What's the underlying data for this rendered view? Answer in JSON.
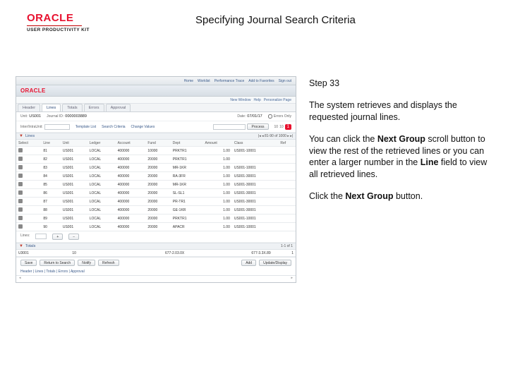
{
  "logo": {
    "brand": "ORACLE",
    "sub": "USER PRODUCTIVITY KIT"
  },
  "title": "Specifying Journal Search Criteria",
  "instructions": {
    "step": "Step 33",
    "para1": "The system retrieves and displays the requested journal lines.",
    "para2a": "You can click the ",
    "bold1": "Next Group",
    "para2b": " scroll button to view the rest of the retrieved lines or you can enter a larger number in the ",
    "bold2": "Line",
    "para2c": " field to view all retrieved lines.",
    "para3a": "Click the ",
    "bold3": "Next Group",
    "para3b": " button."
  },
  "app": {
    "topLinks": [
      "Home",
      "Worklist",
      "Performance Trace",
      "Add to Favorites",
      "Sign out"
    ],
    "brand": "ORACLE",
    "subLinks": [
      "New Window",
      "Help",
      "Personalize Page"
    ],
    "tabs": [
      "Header",
      "Lines",
      "Totals",
      "Errors",
      "Approval"
    ],
    "form": {
      "unit": {
        "label": "Unit:",
        "value": "US001"
      },
      "journal": {
        "label": "Journal ID:",
        "value": "0000003889"
      },
      "template": {
        "label": "Template List"
      },
      "search": {
        "label": "Search Criteria"
      },
      "date": {
        "label": "Date:",
        "value": "07/01/17"
      },
      "errors": {
        "label": "Errors Only"
      },
      "change": {
        "label": "Change Values"
      },
      "interIntra": {
        "label": "Inter/IntraUnit:"
      },
      "process": "Process",
      "view": {
        "label": "View:",
        "values": [
          "10",
          "10"
        ],
        "lines": "Lines:",
        "max": "1000"
      },
      "hotspot": "1"
    },
    "linesHeader": "Lines",
    "columns": [
      "Select",
      "Line",
      "Unit",
      "Ledger",
      "Account",
      "Fund",
      "Dept",
      "Amount",
      "Class",
      "Ref"
    ],
    "rows": [
      [
        "",
        "81",
        "US001",
        "LOCAL",
        "400000",
        "10000",
        "PRKTR1",
        "1.00",
        "US001-10001",
        ""
      ],
      [
        "",
        "82",
        "US001",
        "LOCAL",
        "400000",
        "20000",
        "PRKTR1",
        "1.00",
        "",
        ""
      ],
      [
        "",
        "83",
        "US001",
        "LOCAL",
        "400000",
        "20000",
        "MR-1KR",
        "1.00",
        "US001-10001",
        ""
      ],
      [
        "",
        "84",
        "US001",
        "LOCAL",
        "400000",
        "20000",
        "RA-3FR",
        "1.00",
        "US001-30001",
        ""
      ],
      [
        "",
        "85",
        "US001",
        "LOCAL",
        "400000",
        "20000",
        "MR-1KR",
        "1.00",
        "US001-30001",
        ""
      ],
      [
        "",
        "86",
        "US001",
        "LOCAL",
        "400000",
        "20000",
        "SL-SL1",
        "1.00",
        "US001-30001",
        ""
      ],
      [
        "",
        "87",
        "US001",
        "LOCAL",
        "400000",
        "20000",
        "PR-TR1",
        "1.00",
        "US001-30001",
        ""
      ],
      [
        "",
        "88",
        "US001",
        "LOCAL",
        "400000",
        "20000",
        "GE-1KR",
        "1.00",
        "US001-30001",
        ""
      ],
      [
        "",
        "89",
        "US001",
        "LOCAL",
        "400000",
        "20000",
        "PRKTR1",
        "1.00",
        "US001-10001",
        ""
      ],
      [
        "",
        "90",
        "US001",
        "LOCAL",
        "400000",
        "20000",
        "APACR",
        "1.00",
        "US001-10001",
        ""
      ]
    ],
    "linesFooter": {
      "add": "+",
      "del": "−"
    },
    "totalsHeader": "Totals",
    "totals": {
      "c1": [
        "U3001",
        "10"
      ],
      "c2": [
        "677-2.03.0X",
        ""
      ],
      "c3": [
        "677-3.3X.89",
        "1"
      ]
    },
    "totalsCols": [
      "Unit",
      "Total Lines",
      "",
      "Total Debits",
      "",
      "Total Credits",
      ""
    ],
    "buttons": {
      "save": "Save",
      "return": "Return to Search",
      "notify": "Notify",
      "refresh": "Refresh",
      "add": "Add",
      "update": "Update/Display"
    },
    "tabsLinks": "Header | Lines | Totals | Errors | Approval"
  },
  "palette": {
    "oracle_red": "#e8102e",
    "border": "#bfc6cc",
    "header_grad_top": "#f3f5f7",
    "header_grad_bot": "#e2e7eb",
    "link": "#3a5a8a"
  }
}
